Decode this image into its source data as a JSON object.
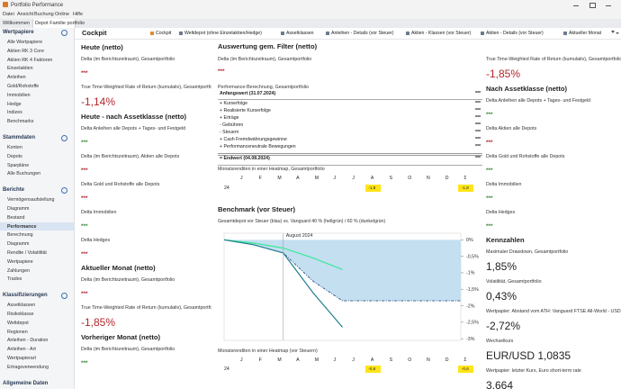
{
  "window": {
    "title": "Portfolio Performance",
    "menu": [
      "Datei",
      "Ansicht",
      "Buchung",
      "Online",
      "Hilfe"
    ]
  },
  "tabs": [
    "Willkommen",
    "Depot Familie portfolio"
  ],
  "sidebar": {
    "sections": [
      {
        "title": "Wertpapiere",
        "items": [
          "Alle Wertpapiere",
          "Aktien RK 3 Core",
          "Aktien RK 4 Faktoren",
          "Einzelaktien",
          "Anleihen",
          "Gold/Rohstoffe",
          "Immobilien",
          "Hedge",
          "Indizes",
          "Benchmarks"
        ]
      },
      {
        "title": "Stammdaten",
        "items": [
          "Konten",
          "Depots",
          "Sparpläne",
          "Alle Buchungen"
        ]
      },
      {
        "title": "Berichte",
        "items": [
          "Vermögensaufstellung",
          "Diagramm",
          "Bestand",
          "Performance",
          "Berechnung",
          "Diagramm",
          "Rendite / Volatilität",
          "Wertpapiere",
          "Zahlungen",
          "Trades"
        ],
        "selected_item": 3
      },
      {
        "title": "Klassifizierungen",
        "items": [
          "Assetklassen",
          "Risikoklasse",
          "Weltdepot",
          "Regionen",
          "Anleihen - Duration",
          "Anleihen - Art",
          "Wertpapierart",
          "Ertragsverwendung"
        ]
      },
      {
        "title": "Allgemeine Daten",
        "items": []
      }
    ]
  },
  "toolbar": {
    "title": "Cockpit",
    "buttons": [
      "Cockpit",
      "Weltdepot (ohne Einzelaktien/Hedge)",
      "Assetklassen",
      "Anleihen - Details (vor Steuer)",
      "Aktien - Klassen (vor Steuer)",
      "Aktien - Details (vor Steuer)",
      "Aktueller Monat"
    ]
  },
  "column1": [
    {
      "heading": "Heute (netto)"
    },
    {
      "label": "Delta (im Berichtszeitraum), Gesamtportfolio",
      "value": "***",
      "tone": "negative"
    },
    {
      "label": "True Time-Weighted Rate of Return (kumulativ), Gesamtportfolio",
      "value": "-1,14%",
      "tone": "negative",
      "size": "large"
    },
    {
      "heading": "Heute - nach Assetklasse (netto)"
    },
    {
      "label": "Delta Anleihen alle Depots + Tages- und Festgeld",
      "value": "***",
      "tone": "positive"
    },
    {
      "label": "Delta (im Berichtszeitraum), Aktien alle Depots",
      "value": "***",
      "tone": "negative"
    },
    {
      "label": "Delta Gold und Rohstoffe alle Depots",
      "value": "***",
      "tone": "negative"
    },
    {
      "label": "Delta Immobilien",
      "value": "***",
      "tone": "positive"
    },
    {
      "label": "Delta Hedges",
      "value": "***",
      "tone": "negative"
    },
    {
      "heading": "Aktueller Monat (netto)"
    },
    {
      "label": "Delta (im Berichtszeitraum), Gesamtportfolio",
      "value": "***",
      "tone": "negative"
    },
    {
      "label": "True Time-Weighted Rate of Return (kumulativ), Gesamtportfolio",
      "value": "-1,85%",
      "tone": "negative",
      "size": "large"
    },
    {
      "heading": "Vorheriger Monat (netto)"
    },
    {
      "label": "Delta (im Berichtszeitraum), Gesamtportfolio",
      "value": "***",
      "tone": "positive"
    }
  ],
  "column2": {
    "heading": "Auswertung gem. Filter (netto)",
    "delta": {
      "label": "Delta (im Berichtszeitraum), Gesamtportfolio",
      "value": "***",
      "tone": "negative"
    },
    "performance": {
      "label": "Performance-Berechnung, Gesamtportfolio",
      "rows": [
        [
          "Anfangswert (31.07.2024)",
          "***"
        ],
        [
          "+ Kurserfolge",
          "***"
        ],
        [
          "+ Realisierte Kurserfolge",
          "***"
        ],
        [
          "+ Erträge",
          "***"
        ],
        [
          "- Gebühren",
          "***"
        ],
        [
          "- Steuern",
          "***"
        ],
        [
          "+ Cash Fremdwährungsgewinne",
          "***"
        ],
        [
          "+ Performanceneutrale Bewegungen",
          "***"
        ],
        [
          "= Endwert (04.08.2024)",
          "***"
        ]
      ]
    },
    "heatmap": {
      "title": "Monatsrenditen in einer Heatmap, Gesamtportfolio",
      "columns": [
        "J",
        "F",
        "M",
        "A",
        "M",
        "J",
        "J",
        "A",
        "S",
        "O",
        "N",
        "D",
        "Σ"
      ],
      "row_label": "24",
      "color": "#ffe419",
      "values": [
        null,
        null,
        null,
        null,
        null,
        null,
        null,
        -1.8,
        null,
        null,
        null,
        null,
        -1.8
      ],
      "value_labels": [
        null,
        null,
        null,
        null,
        null,
        null,
        null,
        "-1,8",
        null,
        null,
        null,
        null,
        "-1,8"
      ]
    },
    "benchmark": {
      "title": "Benchmark (vor Steuer)",
      "subtitle": "Gesamtdepot vor Steuer (blau) vs. Vanguard 40 % (hellgrün) / 60 % (dunkelgrün)",
      "chart": {
        "type": "line",
        "annotation": "August 2024",
        "ylim": [
          -3.05,
          0.2
        ],
        "yticks": [
          {
            "value": 0,
            "label": "0%"
          },
          {
            "value": -0.5,
            "label": "-0,5%"
          },
          {
            "value": -1,
            "label": "-1%"
          },
          {
            "value": -1.5,
            "label": "-1,5%"
          },
          {
            "value": -2,
            "label": "-2%"
          },
          {
            "value": -2.5,
            "label": "-2,5%"
          },
          {
            "value": -3,
            "label": "-3%"
          }
        ],
        "series": [
          {
            "color": "#2c4f86",
            "fill": "#c3dff0",
            "dashed": true,
            "values": [
              0,
              -0.15,
              -0.4,
              -1.25,
              -1.85,
              -1.85,
              -1.85,
              -1.85,
              -1.85
            ]
          },
          {
            "color": "#3ee89a",
            "values": [
              0,
              -0.1,
              -0.25,
              -0.55,
              -0.9,
              null,
              null,
              null,
              null
            ]
          },
          {
            "color": "#1f7d8c",
            "values": [
              0,
              -0.15,
              -0.4,
              -1.6,
              -2.65,
              null,
              null,
              null,
              null
            ]
          }
        ]
      }
    },
    "heatmap2": {
      "title": "Monatsrenditen in einer Heatmap (vor Steuern)",
      "columns": [
        "J",
        "F",
        "M",
        "A",
        "M",
        "J",
        "J",
        "A",
        "S",
        "O",
        "N",
        "D",
        "Σ"
      ],
      "row_label": "24",
      "color": "#ffe419",
      "values": [
        null,
        null,
        null,
        null,
        null,
        null,
        null,
        -0.6,
        null,
        null,
        null,
        null,
        -0.6
      ],
      "value_labels": [
        null,
        null,
        null,
        null,
        null,
        null,
        null,
        "-0,6",
        null,
        null,
        null,
        null,
        "-0,6"
      ]
    }
  },
  "column3": [
    {
      "label": "True Time-Weighted Rate of Return (kumulativ), Gesamtportfolio",
      "value": "-1,85%",
      "tone": "negative",
      "size": "large"
    },
    {
      "heading": "Nach Assetklasse (netto)"
    },
    {
      "label": "Delta Anleihen alle Depots + Tages- und Festgeld",
      "value": "***",
      "tone": "positive"
    },
    {
      "label": "Delta Aktien alle Depots",
      "value": "***",
      "tone": "negative"
    },
    {
      "label": "Delta Gold und Rohstoffe alle Depots",
      "value": "***",
      "tone": "positive"
    },
    {
      "label": "Delta Immobilien",
      "value": "***",
      "tone": "positive"
    },
    {
      "label": "Delta Hedges",
      "value": "***",
      "tone": "positive"
    },
    {
      "heading": "Kennzahlen"
    },
    {
      "label": "Maximaler Drawdown, Gesamtportfolio",
      "value": "1,85%",
      "size": "large"
    },
    {
      "label": "Volatilität, Gesamtportfolio",
      "value": "0,43%",
      "size": "large"
    },
    {
      "label": "Wertpapier: Abstand vom ATH: Vanguard FTSE All-World - USD Dis",
      "value": "-2,72%",
      "size": "large"
    },
    {
      "label": "Wechselkurs",
      "value": "EUR/USD 1,0835",
      "size": "large"
    },
    {
      "label": "Wertpapier: letzter Kurs, Euro short-term rate",
      "value": "3,664",
      "size": "large"
    }
  ]
}
